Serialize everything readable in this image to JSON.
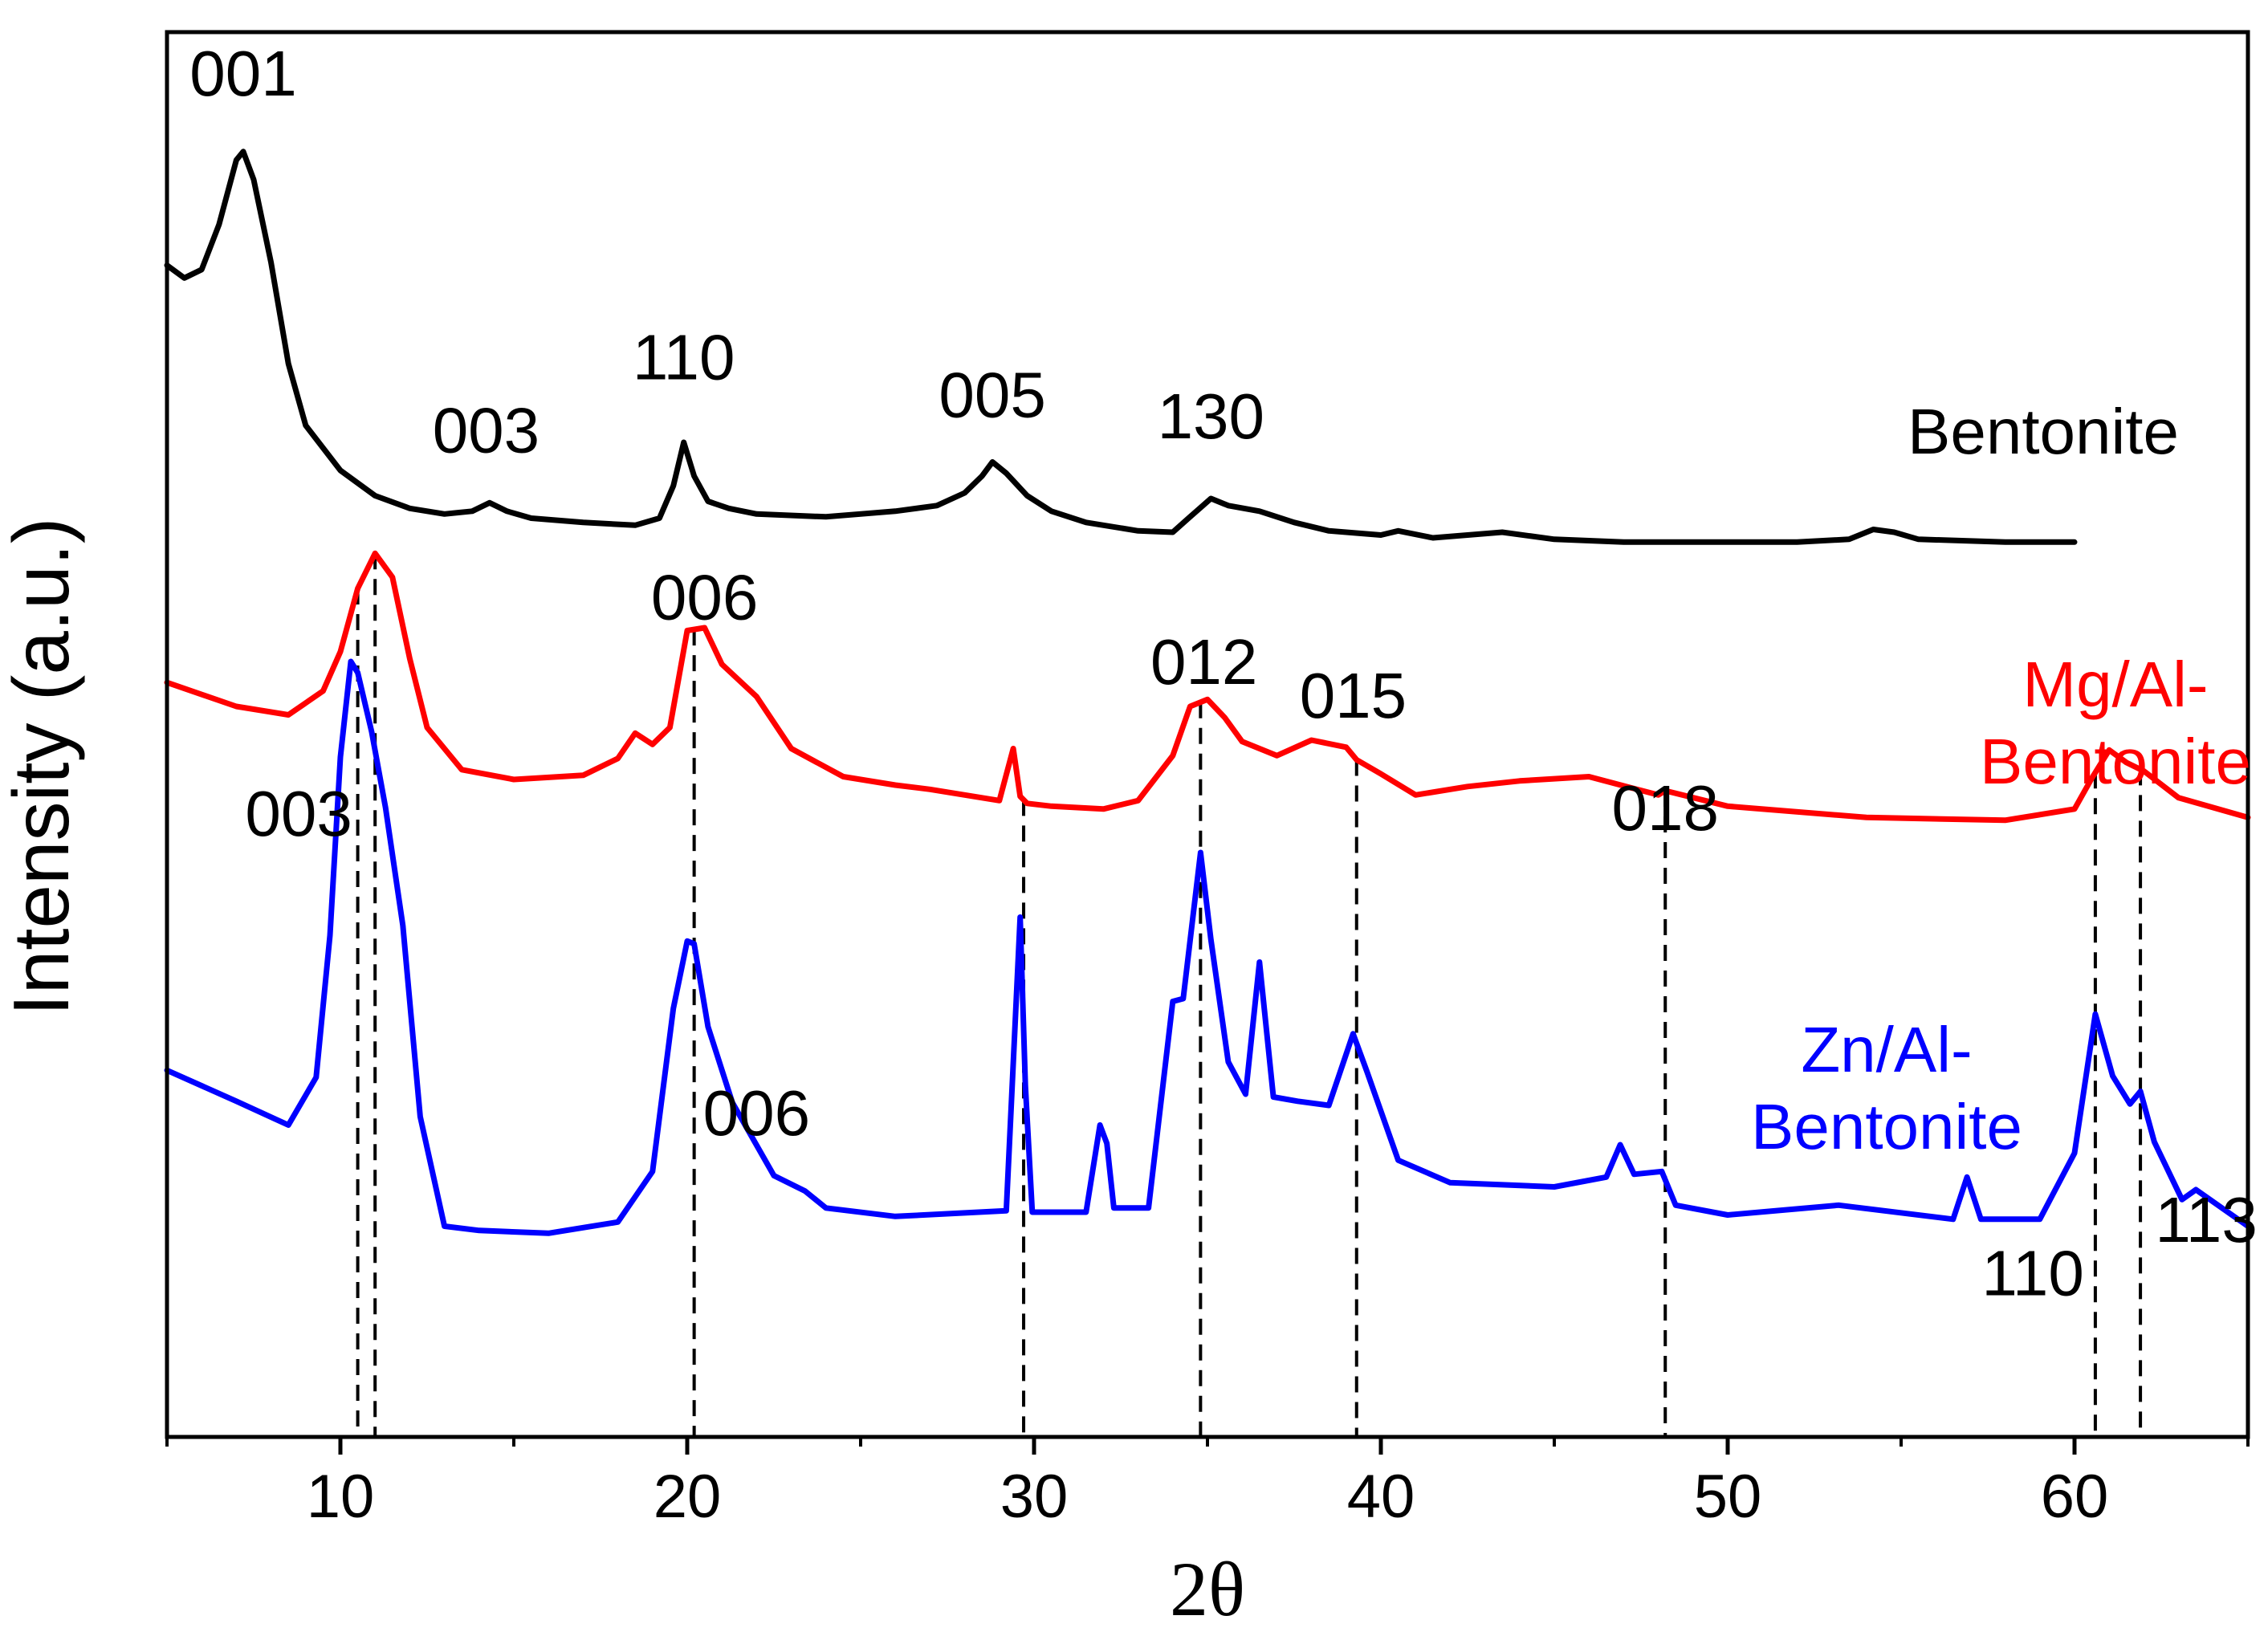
{
  "chart_data": {
    "type": "line",
    "title": "",
    "xlabel": "2θ",
    "ylabel": "Intensity (a.u.)",
    "xlim": [
      5,
      65
    ],
    "ylim": [
      0,
      100
    ],
    "xticks": [
      10,
      20,
      30,
      40,
      50,
      60
    ],
    "yticks": [],
    "grid": false,
    "series": [
      {
        "name": "Bentonite",
        "color": "#000000",
        "label_lines": [
          "Bentonite"
        ],
        "x": [
          5,
          5.5,
          6,
          6.5,
          7,
          7.2,
          7.5,
          8,
          8.5,
          9,
          10,
          11,
          12,
          13,
          13.8,
          14.3,
          14.8,
          15.5,
          17,
          18.5,
          19.2,
          19.6,
          19.9,
          20.2,
          20.6,
          21.2,
          22,
          24,
          26,
          27.2,
          28,
          28.5,
          28.8,
          29.2,
          29.8,
          30.5,
          31.5,
          33,
          34,
          34.5,
          35.1,
          35.6,
          36.5,
          37.5,
          38.5,
          40,
          40.5,
          41.5,
          43.5,
          45,
          47,
          50,
          52,
          53.5,
          54.2,
          54.8,
          55.5,
          58,
          60
        ],
        "y": [
          83.4,
          82.5,
          83.1,
          86.3,
          90.9,
          91.5,
          89.5,
          83.6,
          76.4,
          72.0,
          68.8,
          67.0,
          66.1,
          65.7,
          65.9,
          66.5,
          65.9,
          65.4,
          65.1,
          64.9,
          65.4,
          67.7,
          70.8,
          68.4,
          66.6,
          66.1,
          65.7,
          65.5,
          65.9,
          66.3,
          67.2,
          68.4,
          69.4,
          68.6,
          67.0,
          65.9,
          65.1,
          64.5,
          64.4,
          65.5,
          66.8,
          66.3,
          65.9,
          65.1,
          64.5,
          64.2,
          64.5,
          64.0,
          64.4,
          63.9,
          63.7,
          63.7,
          63.7,
          63.9,
          64.6,
          64.4,
          63.9,
          63.7,
          63.7
        ]
      },
      {
        "name": "Mg/Al-Bentonite",
        "color": "#ff0000",
        "label_lines": [
          "Mg/Al-",
          "Bentonite"
        ],
        "x": [
          5,
          7,
          8.5,
          9.5,
          10,
          10.5,
          11,
          11.5,
          12,
          12.5,
          13.5,
          15,
          17,
          18,
          18.5,
          19,
          19.5,
          20,
          20.5,
          21,
          22,
          23,
          24.5,
          26,
          27,
          28,
          29,
          29.4,
          29.6,
          29.8,
          30.5,
          32,
          33,
          34,
          34.5,
          35,
          35.5,
          36,
          37,
          38,
          39,
          39.3,
          40,
          41,
          42.5,
          44,
          46,
          48,
          48.2,
          50,
          54,
          58,
          60,
          60.5,
          61,
          61.5,
          62,
          63,
          65
        ],
        "y": [
          53.7,
          52.0,
          51.4,
          53.1,
          55.9,
          60.4,
          62.9,
          61.2,
          55.4,
          50.5,
          47.5,
          46.8,
          47.1,
          48.3,
          50.1,
          49.3,
          50.5,
          57.4,
          57.6,
          55.0,
          52.7,
          49.0,
          47.0,
          46.4,
          46.1,
          45.7,
          45.3,
          49.0,
          45.6,
          45.1,
          44.9,
          44.7,
          45.3,
          48.5,
          52.0,
          52.5,
          51.2,
          49.5,
          48.5,
          49.6,
          49.1,
          48.2,
          47.2,
          45.7,
          46.3,
          46.7,
          47.0,
          45.7,
          46.0,
          44.9,
          44.1,
          43.9,
          44.7,
          46.9,
          48.9,
          48.0,
          47.4,
          45.5,
          44.1
        ]
      },
      {
        "name": "Zn/Al-Bentonite",
        "color": "#0000ff",
        "label_lines": [
          "Zn/Al-",
          "Bentonite"
        ],
        "x": [
          5,
          7,
          8.5,
          9.3,
          9.7,
          10,
          10.3,
          10.5,
          10.9,
          11.3,
          11.8,
          12.3,
          13,
          14,
          16,
          18,
          19,
          19.6,
          20,
          20.2,
          20.6,
          21.3,
          22.5,
          23.4,
          24,
          26,
          29.2,
          29.6,
          29.75,
          29.95,
          31.5,
          31.9,
          32.1,
          32.3,
          33.3,
          34,
          34.3,
          34.8,
          35.1,
          35.6,
          36.1,
          36.5,
          36.9,
          37.6,
          38.5,
          39.2,
          39.6,
          40.5,
          42,
          45,
          46.5,
          46.9,
          47.3,
          48.1,
          48.5,
          50,
          53.2,
          56.5,
          56.9,
          57.3,
          59,
          60,
          60.6,
          61.1,
          61.6,
          61.9,
          62.3,
          63.1,
          63.5,
          65
        ],
        "y": [
          26.1,
          23.9,
          22.2,
          25.6,
          35.7,
          48.4,
          55.2,
          54.4,
          50.2,
          44.8,
          36.4,
          22.8,
          15.0,
          14.7,
          14.5,
          15.3,
          18.9,
          30.5,
          35.3,
          35.1,
          29.2,
          23.8,
          18.6,
          17.5,
          16.3,
          15.7,
          16.1,
          37.0,
          25.0,
          16.0,
          16.0,
          22.2,
          20.9,
          16.3,
          16.3,
          31.0,
          31.2,
          41.6,
          35.4,
          26.7,
          24.4,
          33.8,
          24.2,
          23.9,
          23.6,
          28.7,
          26.0,
          19.7,
          18.1,
          17.8,
          18.5,
          20.8,
          18.7,
          18.9,
          16.5,
          15.8,
          16.5,
          15.5,
          18.5,
          15.5,
          15.5,
          20.2,
          30.1,
          25.7,
          23.7,
          24.6,
          21.0,
          16.9,
          17.6,
          15.0
        ]
      }
    ],
    "reference_lines": [
      10.5,
      11.0,
      20.2,
      29.7,
      34.8,
      39.3,
      48.2,
      60.6,
      61.9
    ],
    "annotations": [
      {
        "text": "001",
        "x": 7.2,
        "y": 95.5
      },
      {
        "text": "003",
        "x": 14.2,
        "y": 70.1
      },
      {
        "text": "110",
        "x": 19.9,
        "y": 75.3
      },
      {
        "text": "005",
        "x": 28.8,
        "y": 72.6
      },
      {
        "text": "130",
        "x": 35.1,
        "y": 71.1
      },
      {
        "text": "006",
        "x": 20.5,
        "y": 58.2
      },
      {
        "text": "012",
        "x": 34.9,
        "y": 53.6
      },
      {
        "text": "015",
        "x": 39.2,
        "y": 51.2
      },
      {
        "text": "018",
        "x": 48.2,
        "y": 43.2
      },
      {
        "text": "003",
        "x": 8.8,
        "y": 42.8
      },
      {
        "text": "006",
        "x": 22.0,
        "y": 21.5
      },
      {
        "text": "110",
        "x": 58.8,
        "y": 10.1
      },
      {
        "text": "113",
        "x": 63.8,
        "y": 13.9
      }
    ]
  }
}
